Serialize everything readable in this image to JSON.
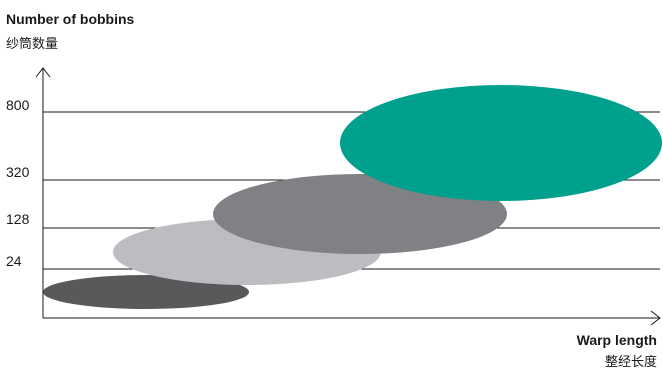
{
  "chart_data": {
    "type": "scatter",
    "ylabel": "Number of bobbins",
    "ylabel_sub": "纱筒数量",
    "xlabel": "Warp length",
    "xlabel_sub": "整经长度",
    "y_ticks": [
      "24",
      "128",
      "320",
      "800"
    ],
    "grid": true,
    "series": [
      {
        "level": 0,
        "color": "#58595b"
      },
      {
        "level": 1,
        "color": "#bcbdc0"
      },
      {
        "level": 2,
        "color": "#808184"
      },
      {
        "level": 3,
        "color": "#00a08e"
      }
    ]
  }
}
